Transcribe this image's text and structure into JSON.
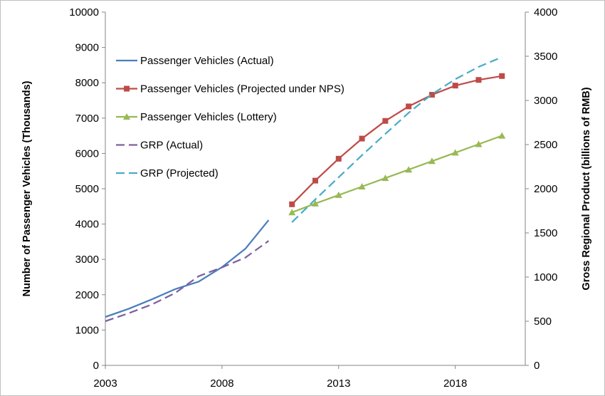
{
  "chart_data": {
    "type": "line",
    "x_ticks": [
      "2003",
      "2008",
      "2013",
      "2018"
    ],
    "xlim": [
      2003,
      2021
    ],
    "y_left": {
      "label": "Number of Passenger Vehicles (Thousands)",
      "lim": [
        0,
        10000
      ],
      "ticks": [
        "0",
        "1000",
        "2000",
        "3000",
        "4000",
        "5000",
        "6000",
        "7000",
        "8000",
        "9000",
        "10000"
      ]
    },
    "y_right": {
      "label": "Gross Regional Product (billions of RMB)",
      "lim": [
        0,
        4000
      ],
      "ticks": [
        "0",
        "500",
        "1000",
        "1500",
        "2000",
        "2500",
        "3000",
        "3500",
        "4000"
      ]
    },
    "grid": false,
    "legend_position": "upper-left",
    "series": [
      {
        "name": "Passenger Vehicles (Actual)",
        "axis": "left",
        "color": "#4a7ebb",
        "style": "solid",
        "marker": "none",
        "x": [
          2003,
          2004,
          2005,
          2006,
          2007,
          2008,
          2009,
          2010
        ],
        "y": [
          1370,
          1600,
          1870,
          2160,
          2370,
          2780,
          3300,
          4110
        ]
      },
      {
        "name": "Passenger Vehicles (Projected under NPS)",
        "axis": "left",
        "color": "#be4b48",
        "style": "solid",
        "marker": "square",
        "x": [
          2011,
          2012,
          2013,
          2014,
          2015,
          2016,
          2017,
          2018,
          2019,
          2020
        ],
        "y": [
          4560,
          5230,
          5850,
          6420,
          6920,
          7330,
          7660,
          7920,
          8080,
          8190
        ]
      },
      {
        "name": "Passenger Vehicles (Lottery)",
        "axis": "left",
        "color": "#98b954",
        "style": "solid",
        "marker": "triangle",
        "x": [
          2011,
          2012,
          2013,
          2014,
          2015,
          2016,
          2017,
          2018,
          2019,
          2020
        ],
        "y": [
          4330,
          4580,
          4820,
          5060,
          5300,
          5540,
          5780,
          6020,
          6260,
          6500
        ]
      },
      {
        "name": "GRP (Actual)",
        "axis": "right",
        "color": "#7d60a0",
        "style": "dashed",
        "marker": "none",
        "x": [
          2003,
          2004,
          2005,
          2006,
          2007,
          2008,
          2009,
          2010
        ],
        "y": [
          500,
          590,
          690,
          820,
          1010,
          1110,
          1220,
          1410
        ]
      },
      {
        "name": "GRP (Projected)",
        "axis": "right",
        "color": "#4bacc6",
        "style": "dashed",
        "marker": "none",
        "x": [
          2011,
          2012,
          2013,
          2014,
          2015,
          2016,
          2017,
          2018,
          2019,
          2020
        ],
        "y": [
          1620,
          1880,
          2130,
          2380,
          2620,
          2860,
          3070,
          3240,
          3380,
          3490
        ]
      }
    ]
  }
}
